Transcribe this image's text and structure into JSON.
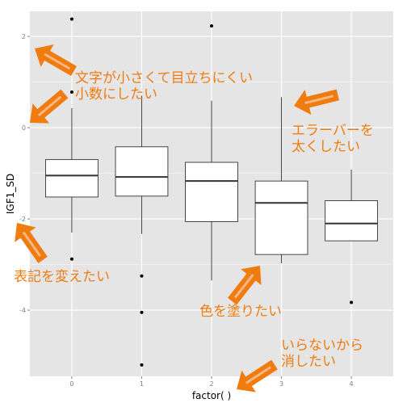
{
  "chart_data": {
    "type": "box",
    "title": "",
    "xlabel": "factor(    )",
    "ylabel": "IGF1_SD",
    "categories": [
      "0",
      "1",
      "2",
      "3",
      "4"
    ],
    "ylim": [
      -5.45,
      2.55
    ],
    "yticks": [
      -4,
      -2,
      0,
      2
    ],
    "ytick_labels": [
      "-4",
      "-2",
      "0",
      "2"
    ],
    "grid": true,
    "boxes": [
      {
        "category": "0",
        "whisker_low": -2.3,
        "q1": -1.52,
        "median": -1.05,
        "q3": -0.7,
        "whisker_high": 0.43,
        "outliers": [
          2.38,
          0.78,
          -2.88
        ]
      },
      {
        "category": "1",
        "whisker_low": -2.33,
        "q1": -1.5,
        "median": -1.08,
        "q3": -0.42,
        "whisker_high": 0.7,
        "outliers": [
          -3.25,
          -4.05,
          -5.2
        ]
      },
      {
        "category": "2",
        "whisker_low": -3.35,
        "q1": -2.06,
        "median": -1.17,
        "q3": -0.76,
        "whisker_high": 0.59,
        "outliers": [
          2.23
        ]
      },
      {
        "category": "3",
        "whisker_low": -2.97,
        "q1": -2.78,
        "median": -1.65,
        "q3": -1.17,
        "whisker_high": 0.67,
        "outliers": []
      },
      {
        "category": "4",
        "whisker_low": -2.48,
        "q1": -2.48,
        "median": -2.1,
        "q3": -1.6,
        "whisker_high": -0.92,
        "outliers": [
          -3.83
        ]
      }
    ],
    "colors": {
      "panel": "#e5e5e5",
      "grid_major": "#ffffff",
      "grid_minor": "#f2f2f2",
      "box_fill": "#ffffff",
      "box_line": "#333333",
      "tick_text": "#7f7f7f"
    }
  },
  "annotations": {
    "small_decimals": [
      "文字が小さくて目立ちにくい",
      "小数にしたい"
    ],
    "thicker_errorbar": [
      "エラーバーを",
      "太くしたい"
    ],
    "change_notation": [
      "表記を変えたい"
    ],
    "fill_color": [
      "色を塗りたい"
    ],
    "remove_label": [
      "いらないから",
      "消したい"
    ],
    "color": "#f07c10",
    "arrow_fill": "#f07c10",
    "arrow_inner": "#f6b784"
  }
}
